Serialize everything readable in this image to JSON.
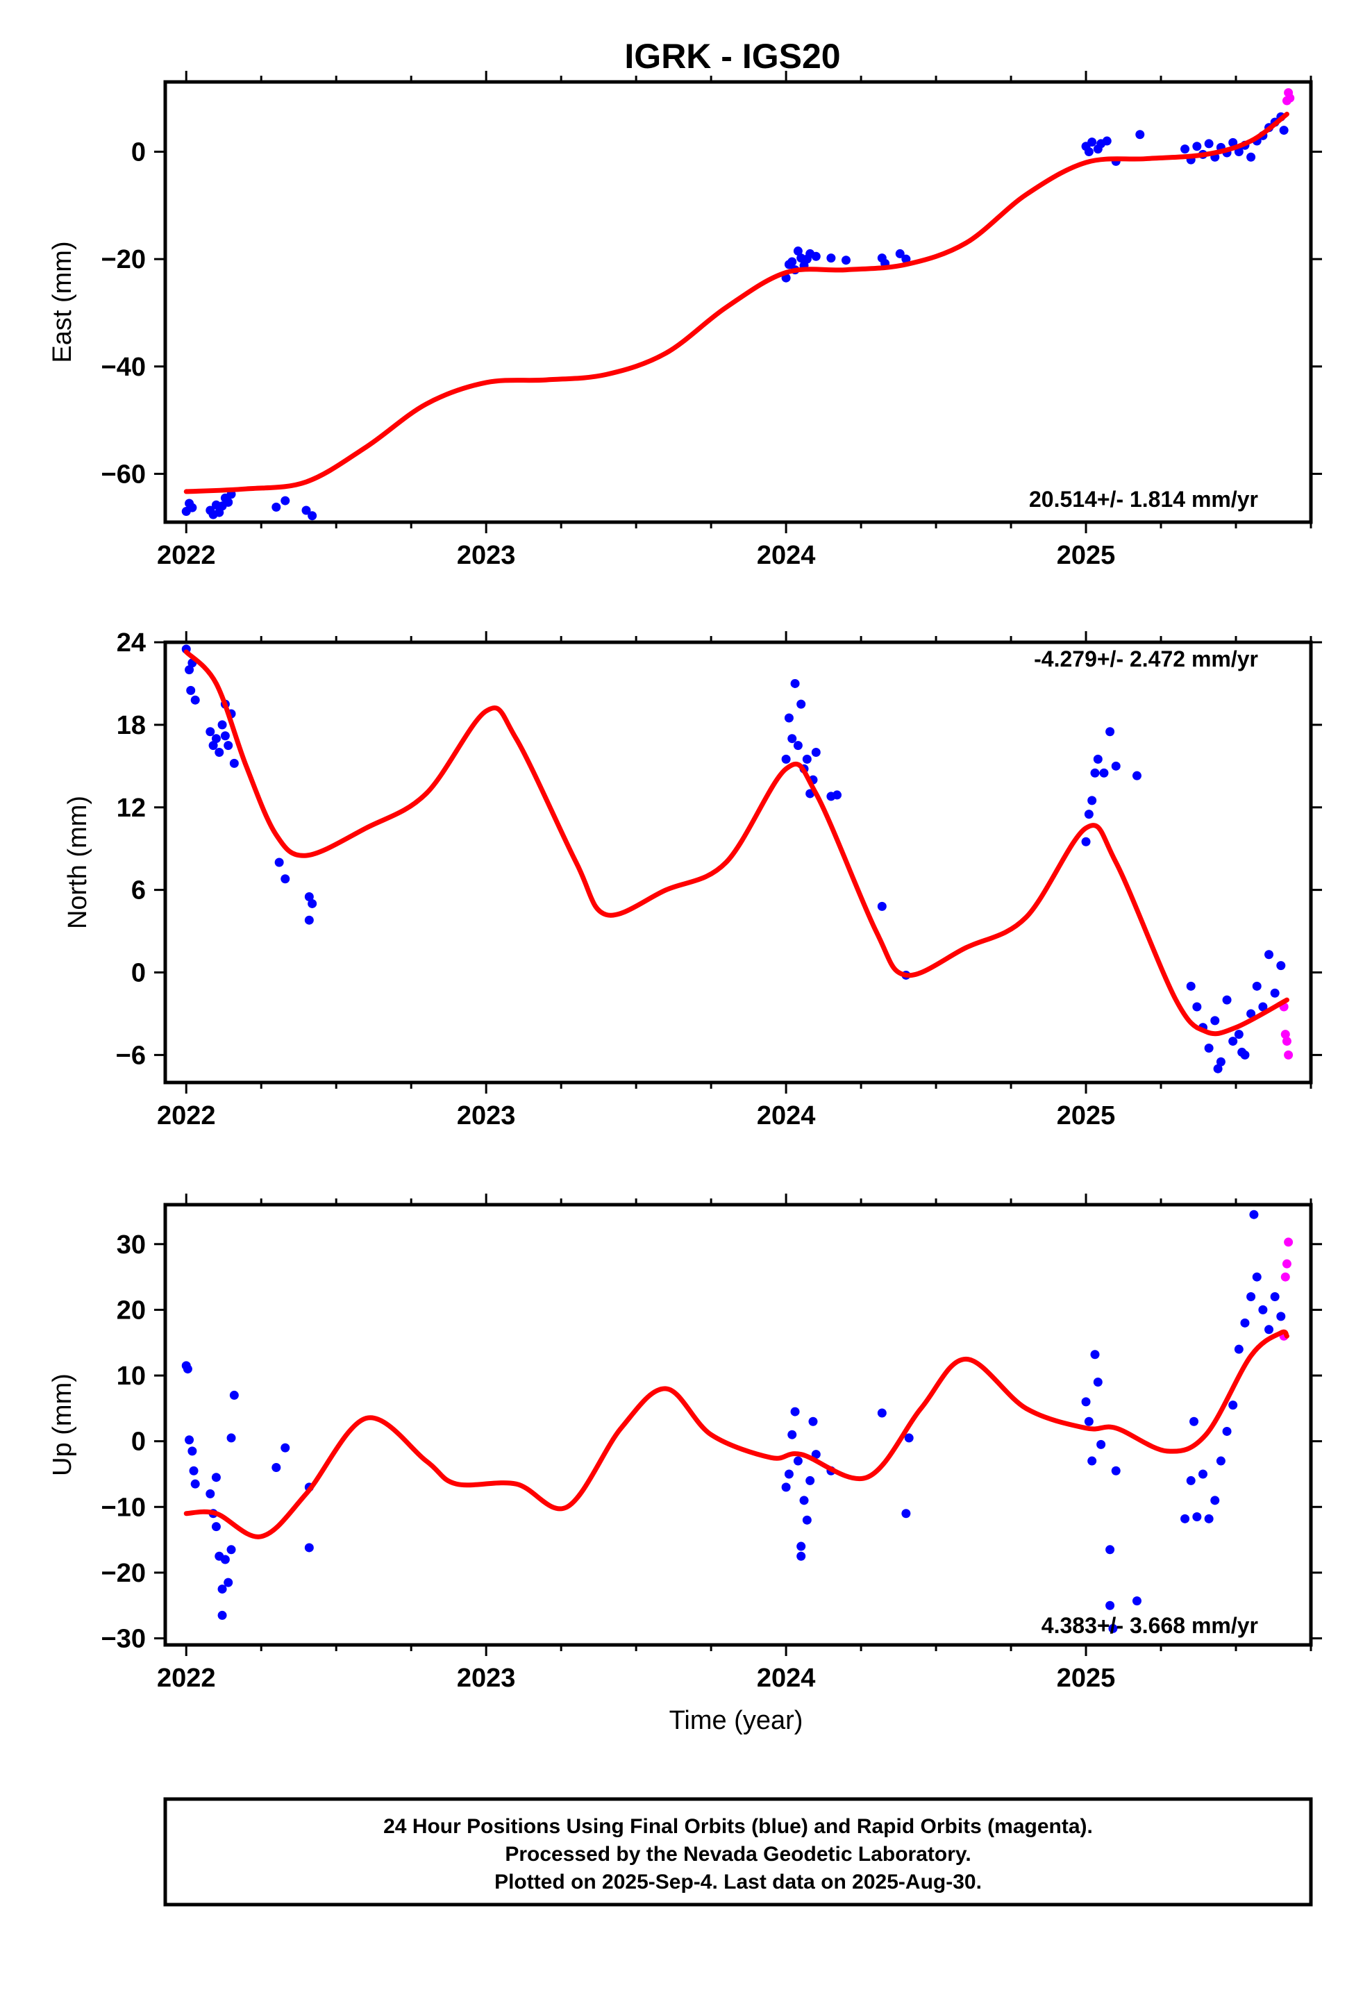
{
  "title": "IGRK - IGS20",
  "footer": {
    "line1": "24 Hour Positions Using Final Orbits (blue) and Rapid Orbits (magenta).",
    "line2": "Processed by the Nevada Geodetic Laboratory.",
    "line3": "Plotted on 2025-Sep-4. Last data on 2025-Aug-30."
  },
  "colors": {
    "final": "#0000ff",
    "rapid": "#ff00ff",
    "model": "#ff0000",
    "frame": "#000000"
  },
  "chart_data": [
    {
      "type": "scatter",
      "ylabel": "East (mm)",
      "rate_label": "20.514+/- 1.814 mm/yr",
      "xlim": [
        2021.93,
        2025.75
      ],
      "ylim": [
        -69,
        13
      ],
      "xticks": [
        2022,
        2023,
        2024,
        2025
      ],
      "yticks": [
        -60,
        -40,
        -20,
        0
      ],
      "final": [
        [
          2022.0,
          -67
        ],
        [
          2022.01,
          -65.5
        ],
        [
          2022.02,
          -66.3
        ],
        [
          2022.08,
          -66.8
        ],
        [
          2022.09,
          -67.6
        ],
        [
          2022.1,
          -65.8
        ],
        [
          2022.11,
          -67.2
        ],
        [
          2022.12,
          -66
        ],
        [
          2022.13,
          -64.5
        ],
        [
          2022.14,
          -65.3
        ],
        [
          2022.15,
          -63.8
        ],
        [
          2022.3,
          -66.2
        ],
        [
          2022.33,
          -65
        ],
        [
          2022.4,
          -66.8
        ],
        [
          2022.42,
          -67.8
        ],
        [
          2024.0,
          -23.5
        ],
        [
          2024.01,
          -21
        ],
        [
          2024.02,
          -20.5
        ],
        [
          2024.03,
          -22
        ],
        [
          2024.04,
          -18.5
        ],
        [
          2024.05,
          -19.8
        ],
        [
          2024.06,
          -21.2
        ],
        [
          2024.07,
          -20
        ],
        [
          2024.08,
          -19
        ],
        [
          2024.1,
          -19.5
        ],
        [
          2024.15,
          -19.8
        ],
        [
          2024.2,
          -20.2
        ],
        [
          2024.32,
          -19.8
        ],
        [
          2024.33,
          -20.8
        ],
        [
          2024.38,
          -19
        ],
        [
          2024.4,
          -20
        ],
        [
          2025.0,
          1
        ],
        [
          2025.01,
          0
        ],
        [
          2025.02,
          1.8
        ],
        [
          2025.04,
          0.5
        ],
        [
          2025.05,
          1.5
        ],
        [
          2025.07,
          2
        ],
        [
          2025.1,
          -1.8
        ],
        [
          2025.18,
          3.2
        ],
        [
          2025.33,
          0.5
        ],
        [
          2025.35,
          -1.5
        ],
        [
          2025.37,
          1
        ],
        [
          2025.39,
          -0.5
        ],
        [
          2025.41,
          1.5
        ],
        [
          2025.43,
          -1
        ],
        [
          2025.45,
          0.8
        ],
        [
          2025.47,
          -0.2
        ],
        [
          2025.49,
          1.7
        ],
        [
          2025.51,
          0
        ],
        [
          2025.53,
          1.2
        ],
        [
          2025.55,
          -1
        ],
        [
          2025.57,
          2
        ],
        [
          2025.59,
          3
        ],
        [
          2025.61,
          4.5
        ],
        [
          2025.63,
          5.5
        ],
        [
          2025.65,
          6.5
        ],
        [
          2025.66,
          4
        ]
      ],
      "rapid": [
        [
          2025.67,
          9.5
        ],
        [
          2025.675,
          11
        ],
        [
          2025.68,
          10
        ]
      ],
      "model": [
        [
          2022.0,
          -63.3
        ],
        [
          2022.2,
          -62.8
        ],
        [
          2022.4,
          -61.5
        ],
        [
          2022.6,
          -55
        ],
        [
          2022.8,
          -47
        ],
        [
          2023.0,
          -43
        ],
        [
          2023.2,
          -42.5
        ],
        [
          2023.4,
          -41.5
        ],
        [
          2023.6,
          -37.5
        ],
        [
          2023.8,
          -29
        ],
        [
          2024.0,
          -22.5
        ],
        [
          2024.2,
          -22
        ],
        [
          2024.4,
          -21
        ],
        [
          2024.6,
          -17
        ],
        [
          2024.8,
          -8
        ],
        [
          2025.0,
          -2
        ],
        [
          2025.2,
          -1.3
        ],
        [
          2025.4,
          -0.5
        ],
        [
          2025.55,
          2
        ],
        [
          2025.67,
          7
        ]
      ]
    },
    {
      "type": "scatter",
      "ylabel": "North (mm)",
      "rate_label": "-4.279+/- 2.472 mm/yr",
      "xlim": [
        2021.93,
        2025.75
      ],
      "ylim": [
        -8,
        24
      ],
      "xticks": [
        2022,
        2023,
        2024,
        2025
      ],
      "yticks": [
        -6,
        0,
        6,
        12,
        18,
        24
      ],
      "final": [
        [
          2022.0,
          23.5
        ],
        [
          2022.01,
          22
        ],
        [
          2022.015,
          20.5
        ],
        [
          2022.02,
          22.5
        ],
        [
          2022.03,
          19.8
        ],
        [
          2022.08,
          17.5
        ],
        [
          2022.09,
          16.5
        ],
        [
          2022.1,
          17
        ],
        [
          2022.11,
          16
        ],
        [
          2022.12,
          18
        ],
        [
          2022.13,
          17.2
        ],
        [
          2022.14,
          16.5
        ],
        [
          2022.15,
          18.8
        ],
        [
          2022.16,
          15.2
        ],
        [
          2022.13,
          19.5
        ],
        [
          2022.31,
          8
        ],
        [
          2022.33,
          6.8
        ],
        [
          2022.41,
          5.5
        ],
        [
          2022.41,
          3.8
        ],
        [
          2022.42,
          5
        ],
        [
          2024.0,
          15.5
        ],
        [
          2024.01,
          18.5
        ],
        [
          2024.02,
          17
        ],
        [
          2024.03,
          21
        ],
        [
          2024.04,
          16.5
        ],
        [
          2024.05,
          19.5
        ],
        [
          2024.06,
          14.8
        ],
        [
          2024.07,
          15.5
        ],
        [
          2024.08,
          13
        ],
        [
          2024.09,
          14
        ],
        [
          2024.1,
          16
        ],
        [
          2024.15,
          12.8
        ],
        [
          2024.17,
          12.9
        ],
        [
          2024.32,
          4.8
        ],
        [
          2024.4,
          -0.2
        ],
        [
          2025.0,
          9.5
        ],
        [
          2025.01,
          11.5
        ],
        [
          2025.02,
          12.5
        ],
        [
          2025.03,
          14.5
        ],
        [
          2025.04,
          15.5
        ],
        [
          2025.06,
          14.5
        ],
        [
          2025.08,
          17.5
        ],
        [
          2025.1,
          15
        ],
        [
          2025.17,
          14.3
        ],
        [
          2025.35,
          -1
        ],
        [
          2025.37,
          -2.5
        ],
        [
          2025.39,
          -4
        ],
        [
          2025.41,
          -5.5
        ],
        [
          2025.43,
          -3.5
        ],
        [
          2025.45,
          -6.5
        ],
        [
          2025.47,
          -2
        ],
        [
          2025.49,
          -5
        ],
        [
          2025.51,
          -4.5
        ],
        [
          2025.53,
          -6
        ],
        [
          2025.55,
          -3
        ],
        [
          2025.57,
          -1
        ],
        [
          2025.59,
          -2.5
        ],
        [
          2025.61,
          1.3
        ],
        [
          2025.63,
          -1.5
        ],
        [
          2025.65,
          0.5
        ],
        [
          2025.44,
          -7
        ],
        [
          2025.52,
          -5.8
        ]
      ],
      "rapid": [
        [
          2025.66,
          -2.5
        ],
        [
          2025.665,
          -4.5
        ],
        [
          2025.67,
          -5
        ],
        [
          2025.675,
          -6
        ]
      ],
      "model": [
        [
          2022.0,
          23.3
        ],
        [
          2022.1,
          21
        ],
        [
          2022.2,
          15
        ],
        [
          2022.3,
          10
        ],
        [
          2022.4,
          8.5
        ],
        [
          2022.6,
          10.5
        ],
        [
          2022.8,
          13
        ],
        [
          2023.0,
          19
        ],
        [
          2023.1,
          17
        ],
        [
          2023.3,
          8
        ],
        [
          2023.4,
          4.2
        ],
        [
          2023.6,
          6
        ],
        [
          2023.8,
          8
        ],
        [
          2024.0,
          14.8
        ],
        [
          2024.1,
          13
        ],
        [
          2024.3,
          3
        ],
        [
          2024.4,
          -0.2
        ],
        [
          2024.6,
          1.8
        ],
        [
          2024.8,
          4
        ],
        [
          2025.0,
          10.5
        ],
        [
          2025.1,
          8
        ],
        [
          2025.3,
          -2
        ],
        [
          2025.4,
          -4.3
        ],
        [
          2025.5,
          -4
        ],
        [
          2025.67,
          -2
        ]
      ]
    },
    {
      "type": "scatter",
      "ylabel": "Up (mm)",
      "xlabel": "Time (year)",
      "rate_label": "4.383+/- 3.668 mm/yr",
      "xlim": [
        2021.93,
        2025.75
      ],
      "ylim": [
        -31,
        36
      ],
      "xticks": [
        2022,
        2023,
        2024,
        2025
      ],
      "yticks": [
        -30,
        -20,
        -10,
        0,
        10,
        20,
        30
      ],
      "final": [
        [
          2022.0,
          11.5
        ],
        [
          2022.005,
          11
        ],
        [
          2022.01,
          0.2
        ],
        [
          2022.02,
          -1.5
        ],
        [
          2022.025,
          -4.5
        ],
        [
          2022.03,
          -6.5
        ],
        [
          2022.08,
          -8
        ],
        [
          2022.09,
          -11
        ],
        [
          2022.1,
          -13
        ],
        [
          2022.1,
          -5.5
        ],
        [
          2022.11,
          -17.5
        ],
        [
          2022.12,
          -22.5
        ],
        [
          2022.12,
          -26.5
        ],
        [
          2022.13,
          -18
        ],
        [
          2022.14,
          -21.5
        ],
        [
          2022.15,
          -16.5
        ],
        [
          2022.15,
          0.5
        ],
        [
          2022.16,
          7
        ],
        [
          2022.3,
          -4
        ],
        [
          2022.33,
          -1
        ],
        [
          2022.41,
          -16.2
        ],
        [
          2022.41,
          -7
        ],
        [
          2024.0,
          -7
        ],
        [
          2024.01,
          -5
        ],
        [
          2024.02,
          1
        ],
        [
          2024.03,
          4.5
        ],
        [
          2024.04,
          -3
        ],
        [
          2024.05,
          -16
        ],
        [
          2024.05,
          -17.5
        ],
        [
          2024.06,
          -9
        ],
        [
          2024.07,
          -12
        ],
        [
          2024.08,
          -6
        ],
        [
          2024.09,
          3
        ],
        [
          2024.1,
          -2
        ],
        [
          2024.15,
          -4.5
        ],
        [
          2024.32,
          4.3
        ],
        [
          2024.4,
          -11
        ],
        [
          2024.41,
          0.5
        ],
        [
          2025.0,
          6
        ],
        [
          2025.01,
          3
        ],
        [
          2025.02,
          -3
        ],
        [
          2025.03,
          13.2
        ],
        [
          2025.04,
          9
        ],
        [
          2025.05,
          -0.5
        ],
        [
          2025.08,
          -16.5
        ],
        [
          2025.08,
          -25
        ],
        [
          2025.09,
          -28.5
        ],
        [
          2025.1,
          -4.5
        ],
        [
          2025.17,
          -24.3
        ],
        [
          2025.33,
          -11.8
        ],
        [
          2025.35,
          -6
        ],
        [
          2025.36,
          3
        ],
        [
          2025.37,
          -11.5
        ],
        [
          2025.39,
          -5
        ],
        [
          2025.41,
          -11.8
        ],
        [
          2025.43,
          -9
        ],
        [
          2025.45,
          -3
        ],
        [
          2025.47,
          1.5
        ],
        [
          2025.49,
          5.5
        ],
        [
          2025.51,
          14
        ],
        [
          2025.53,
          18
        ],
        [
          2025.55,
          22
        ],
        [
          2025.56,
          34.5
        ],
        [
          2025.57,
          25
        ],
        [
          2025.59,
          20
        ],
        [
          2025.61,
          17
        ],
        [
          2025.63,
          22
        ],
        [
          2025.65,
          19
        ]
      ],
      "rapid": [
        [
          2025.66,
          16
        ],
        [
          2025.665,
          25
        ],
        [
          2025.67,
          27
        ],
        [
          2025.675,
          30.3
        ]
      ],
      "model": [
        [
          2022.0,
          -11
        ],
        [
          2022.1,
          -11
        ],
        [
          2022.25,
          -14.5
        ],
        [
          2022.4,
          -8
        ],
        [
          2022.6,
          3.5
        ],
        [
          2022.8,
          -3
        ],
        [
          2022.9,
          -6.5
        ],
        [
          2023.1,
          -6.5
        ],
        [
          2023.27,
          -10
        ],
        [
          2023.45,
          2
        ],
        [
          2023.6,
          8
        ],
        [
          2023.75,
          1
        ],
        [
          2023.95,
          -2.5
        ],
        [
          2024.05,
          -2
        ],
        [
          2024.27,
          -5.5
        ],
        [
          2024.45,
          5
        ],
        [
          2024.6,
          12.5
        ],
        [
          2024.8,
          5
        ],
        [
          2025.0,
          2
        ],
        [
          2025.1,
          2
        ],
        [
          2025.27,
          -1.5
        ],
        [
          2025.4,
          1
        ],
        [
          2025.55,
          13
        ],
        [
          2025.65,
          16.5
        ],
        [
          2025.67,
          16
        ]
      ]
    }
  ]
}
